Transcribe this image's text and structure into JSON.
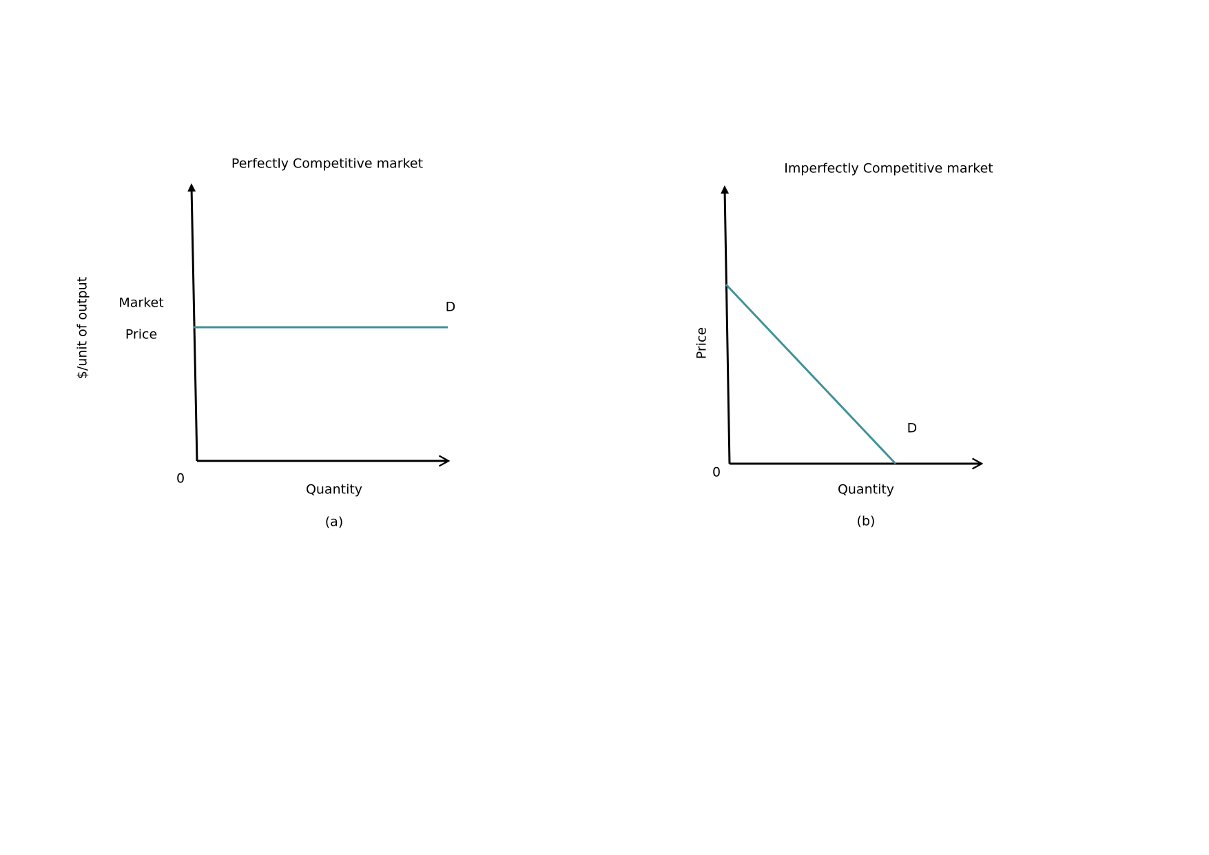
{
  "panels": [
    {
      "title": "Perfectly Competitive market",
      "y_label": "$/unit of output",
      "price_label": [
        "Market",
        "Price"
      ],
      "origin": "0",
      "x_label": "Quantity",
      "caption": "(a)",
      "curve_label": "D"
    },
    {
      "title": "Imperfectly Competitive market",
      "y_label": "Price",
      "origin": "0",
      "x_label": "Quantity",
      "caption": "(b)",
      "curve_label": "D"
    }
  ]
}
